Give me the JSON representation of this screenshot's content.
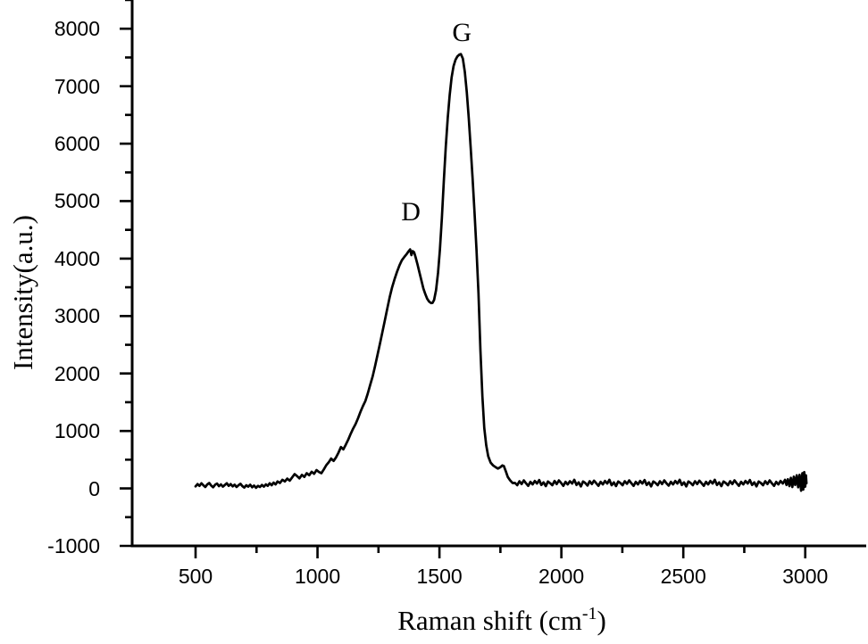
{
  "figure": {
    "background": "#ffffff",
    "ink": "#000000"
  },
  "chart_data": {
    "type": "line",
    "title": "",
    "xlabel": "Raman shift (cm⁻¹)",
    "xlabel_parts": {
      "prefix": "Raman shift (cm",
      "sup": "-1",
      "suffix": ")"
    },
    "ylabel": "Intensity(a.u.)",
    "xlim": [
      240,
      3250
    ],
    "ylim": [
      -1000,
      8500
    ],
    "grid": false,
    "legend": null,
    "line_color": "#000000",
    "x_major_ticks": [
      {
        "value": 500,
        "label": "500"
      },
      {
        "value": 1000,
        "label": "1000"
      },
      {
        "value": 1500,
        "label": "1500"
      },
      {
        "value": 2000,
        "label": "2000"
      },
      {
        "value": 2500,
        "label": "2500"
      },
      {
        "value": 3000,
        "label": "3000"
      }
    ],
    "x_minor_ticks": [
      750,
      1250,
      1750,
      2250,
      2750
    ],
    "y_major_ticks": [
      {
        "value": -1000,
        "label": "-1000"
      },
      {
        "value": 0,
        "label": "0"
      },
      {
        "value": 1000,
        "label": "1000"
      },
      {
        "value": 2000,
        "label": "2000"
      },
      {
        "value": 3000,
        "label": "3000"
      },
      {
        "value": 4000,
        "label": "4000"
      },
      {
        "value": 5000,
        "label": "5000"
      },
      {
        "value": 6000,
        "label": "6000"
      },
      {
        "value": 7000,
        "label": "7000"
      },
      {
        "value": 8000,
        "label": "8000"
      }
    ],
    "y_minor_ticks": [
      -500,
      500,
      1500,
      2500,
      3500,
      4500,
      5500,
      6500,
      7500,
      8500
    ],
    "annotations": [
      {
        "text": "D",
        "x": 1383,
        "y": 4800
      },
      {
        "text": "G",
        "x": 1592,
        "y": 7920
      }
    ],
    "peaks": {
      "D": {
        "position_cm1": 1380,
        "intensity": 4160
      },
      "G": {
        "position_cm1": 1590,
        "intensity": 7560
      }
    },
    "series": [
      {
        "name": "Raman spectrum",
        "points": [
          [
            500,
            35
          ],
          [
            508,
            75
          ],
          [
            516,
            45
          ],
          [
            524,
            90
          ],
          [
            532,
            55
          ],
          [
            540,
            25
          ],
          [
            548,
            70
          ],
          [
            556,
            95
          ],
          [
            564,
            50
          ],
          [
            572,
            20
          ],
          [
            580,
            65
          ],
          [
            588,
            85
          ],
          [
            596,
            40
          ],
          [
            604,
            70
          ],
          [
            612,
            30
          ],
          [
            620,
            60
          ],
          [
            628,
            90
          ],
          [
            636,
            45
          ],
          [
            644,
            75
          ],
          [
            652,
            35
          ],
          [
            660,
            65
          ],
          [
            668,
            25
          ],
          [
            676,
            55
          ],
          [
            684,
            80
          ],
          [
            692,
            40
          ],
          [
            700,
            15
          ],
          [
            708,
            55
          ],
          [
            716,
            30
          ],
          [
            724,
            65
          ],
          [
            732,
            20
          ],
          [
            740,
            50
          ],
          [
            748,
            10
          ],
          [
            756,
            45
          ],
          [
            764,
            25
          ],
          [
            772,
            60
          ],
          [
            780,
            30
          ],
          [
            788,
            70
          ],
          [
            796,
            45
          ],
          [
            804,
            90
          ],
          [
            812,
            55
          ],
          [
            820,
            100
          ],
          [
            828,
            70
          ],
          [
            836,
            120
          ],
          [
            846,
            95
          ],
          [
            856,
            150
          ],
          [
            866,
            120
          ],
          [
            876,
            170
          ],
          [
            886,
            135
          ],
          [
            896,
            190
          ],
          [
            906,
            250
          ],
          [
            916,
            215
          ],
          [
            926,
            175
          ],
          [
            936,
            235
          ],
          [
            946,
            200
          ],
          [
            956,
            265
          ],
          [
            966,
            230
          ],
          [
            976,
            290
          ],
          [
            986,
            255
          ],
          [
            996,
            320
          ],
          [
            1006,
            285
          ],
          [
            1016,
            265
          ],
          [
            1026,
            330
          ],
          [
            1036,
            405
          ],
          [
            1046,
            455
          ],
          [
            1056,
            520
          ],
          [
            1066,
            480
          ],
          [
            1076,
            540
          ],
          [
            1086,
            620
          ],
          [
            1096,
            720
          ],
          [
            1106,
            680
          ],
          [
            1116,
            760
          ],
          [
            1126,
            850
          ],
          [
            1136,
            950
          ],
          [
            1146,
            1040
          ],
          [
            1156,
            1120
          ],
          [
            1166,
            1220
          ],
          [
            1176,
            1330
          ],
          [
            1186,
            1430
          ],
          [
            1196,
            1520
          ],
          [
            1206,
            1650
          ],
          [
            1216,
            1800
          ],
          [
            1226,
            1950
          ],
          [
            1236,
            2130
          ],
          [
            1246,
            2320
          ],
          [
            1256,
            2520
          ],
          [
            1266,
            2720
          ],
          [
            1276,
            2920
          ],
          [
            1286,
            3130
          ],
          [
            1296,
            3330
          ],
          [
            1306,
            3500
          ],
          [
            1316,
            3640
          ],
          [
            1326,
            3770
          ],
          [
            1336,
            3880
          ],
          [
            1346,
            3970
          ],
          [
            1356,
            4030
          ],
          [
            1366,
            4080
          ],
          [
            1374,
            4130
          ],
          [
            1380,
            4160
          ],
          [
            1385,
            4060
          ],
          [
            1390,
            4130
          ],
          [
            1396,
            4110
          ],
          [
            1402,
            4030
          ],
          [
            1410,
            3900
          ],
          [
            1418,
            3760
          ],
          [
            1426,
            3620
          ],
          [
            1434,
            3480
          ],
          [
            1442,
            3380
          ],
          [
            1450,
            3300
          ],
          [
            1458,
            3250
          ],
          [
            1466,
            3225
          ],
          [
            1472,
            3230
          ],
          [
            1478,
            3280
          ],
          [
            1486,
            3450
          ],
          [
            1494,
            3750
          ],
          [
            1502,
            4150
          ],
          [
            1510,
            4700
          ],
          [
            1518,
            5350
          ],
          [
            1526,
            5950
          ],
          [
            1534,
            6450
          ],
          [
            1542,
            6850
          ],
          [
            1550,
            7150
          ],
          [
            1558,
            7350
          ],
          [
            1566,
            7460
          ],
          [
            1574,
            7520
          ],
          [
            1582,
            7550
          ],
          [
            1588,
            7560
          ],
          [
            1596,
            7480
          ],
          [
            1604,
            7250
          ],
          [
            1612,
            6900
          ],
          [
            1620,
            6450
          ],
          [
            1628,
            5950
          ],
          [
            1636,
            5400
          ],
          [
            1644,
            4800
          ],
          [
            1652,
            4150
          ],
          [
            1660,
            3400
          ],
          [
            1668,
            2400
          ],
          [
            1676,
            1600
          ],
          [
            1684,
            1050
          ],
          [
            1692,
            750
          ],
          [
            1700,
            560
          ],
          [
            1710,
            450
          ],
          [
            1720,
            400
          ],
          [
            1730,
            370
          ],
          [
            1740,
            345
          ],
          [
            1750,
            370
          ],
          [
            1758,
            400
          ],
          [
            1764,
            390
          ],
          [
            1772,
            300
          ],
          [
            1780,
            200
          ],
          [
            1790,
            140
          ],
          [
            1800,
            95
          ],
          [
            1810,
            95
          ],
          [
            1819,
            55
          ],
          [
            1828,
            125
          ],
          [
            1837,
            75
          ],
          [
            1846,
            140
          ],
          [
            1855,
            90
          ],
          [
            1864,
            45
          ],
          [
            1873,
            115
          ],
          [
            1882,
            70
          ],
          [
            1891,
            130
          ],
          [
            1900,
            85
          ],
          [
            1909,
            145
          ],
          [
            1918,
            60
          ],
          [
            1927,
            105
          ],
          [
            1936,
            40
          ],
          [
            1945,
            120
          ],
          [
            1954,
            90
          ],
          [
            1963,
            55
          ],
          [
            1972,
            130
          ],
          [
            1981,
            75
          ],
          [
            1990,
            140
          ],
          [
            1999,
            95
          ],
          [
            2008,
            45
          ],
          [
            2017,
            115
          ],
          [
            2026,
            70
          ],
          [
            2035,
            125
          ],
          [
            2044,
            85
          ],
          [
            2053,
            150
          ],
          [
            2062,
            60
          ],
          [
            2071,
            105
          ],
          [
            2080,
            35
          ],
          [
            2089,
            120
          ],
          [
            2098,
            95
          ],
          [
            2107,
            50
          ],
          [
            2116,
            125
          ],
          [
            2125,
            75
          ],
          [
            2134,
            135
          ],
          [
            2143,
            90
          ],
          [
            2152,
            45
          ],
          [
            2161,
            115
          ],
          [
            2170,
            70
          ],
          [
            2179,
            130
          ],
          [
            2188,
            85
          ],
          [
            2197,
            150
          ],
          [
            2206,
            55
          ],
          [
            2215,
            105
          ],
          [
            2224,
            40
          ],
          [
            2233,
            120
          ],
          [
            2242,
            95
          ],
          [
            2251,
            55
          ],
          [
            2260,
            125
          ],
          [
            2269,
            80
          ],
          [
            2278,
            140
          ],
          [
            2287,
            90
          ],
          [
            2296,
            45
          ],
          [
            2305,
            115
          ],
          [
            2314,
            70
          ],
          [
            2323,
            130
          ],
          [
            2332,
            85
          ],
          [
            2341,
            145
          ],
          [
            2350,
            60
          ],
          [
            2359,
            105
          ],
          [
            2368,
            35
          ],
          [
            2377,
            120
          ],
          [
            2386,
            95
          ],
          [
            2395,
            55
          ],
          [
            2404,
            125
          ],
          [
            2413,
            75
          ],
          [
            2422,
            140
          ],
          [
            2431,
            90
          ],
          [
            2440,
            50
          ],
          [
            2449,
            115
          ],
          [
            2458,
            70
          ],
          [
            2467,
            130
          ],
          [
            2476,
            85
          ],
          [
            2485,
            150
          ],
          [
            2494,
            60
          ],
          [
            2503,
            105
          ],
          [
            2512,
            35
          ],
          [
            2521,
            120
          ],
          [
            2530,
            95
          ],
          [
            2539,
            55
          ],
          [
            2548,
            125
          ],
          [
            2557,
            75
          ],
          [
            2566,
            135
          ],
          [
            2575,
            90
          ],
          [
            2584,
            45
          ],
          [
            2593,
            115
          ],
          [
            2602,
            70
          ],
          [
            2611,
            130
          ],
          [
            2620,
            85
          ],
          [
            2629,
            150
          ],
          [
            2638,
            60
          ],
          [
            2647,
            105
          ],
          [
            2656,
            40
          ],
          [
            2665,
            120
          ],
          [
            2674,
            95
          ],
          [
            2683,
            55
          ],
          [
            2692,
            125
          ],
          [
            2701,
            75
          ],
          [
            2710,
            140
          ],
          [
            2719,
            90
          ],
          [
            2728,
            45
          ],
          [
            2737,
            115
          ],
          [
            2746,
            70
          ],
          [
            2755,
            130
          ],
          [
            2764,
            85
          ],
          [
            2773,
            145
          ],
          [
            2782,
            60
          ],
          [
            2791,
            105
          ],
          [
            2800,
            35
          ],
          [
            2809,
            120
          ],
          [
            2818,
            95
          ],
          [
            2827,
            55
          ],
          [
            2836,
            125
          ],
          [
            2845,
            75
          ],
          [
            2854,
            140
          ],
          [
            2863,
            90
          ],
          [
            2872,
            45
          ],
          [
            2881,
            115
          ],
          [
            2890,
            70
          ],
          [
            2899,
            130
          ],
          [
            2908,
            85
          ],
          [
            2917,
            150
          ],
          [
            2923,
            60
          ],
          [
            2929,
            160
          ],
          [
            2935,
            40
          ],
          [
            2941,
            185
          ],
          [
            2947,
            25
          ],
          [
            2953,
            205
          ],
          [
            2959,
            60
          ],
          [
            2965,
            230
          ],
          [
            2971,
            20
          ],
          [
            2977,
            235
          ],
          [
            2983,
            -40
          ],
          [
            2988,
            265
          ],
          [
            2992,
            -20
          ],
          [
            2996,
            285
          ],
          [
            3000,
            30
          ],
          [
            3003,
            230
          ],
          [
            3005,
            90
          ]
        ]
      }
    ]
  }
}
